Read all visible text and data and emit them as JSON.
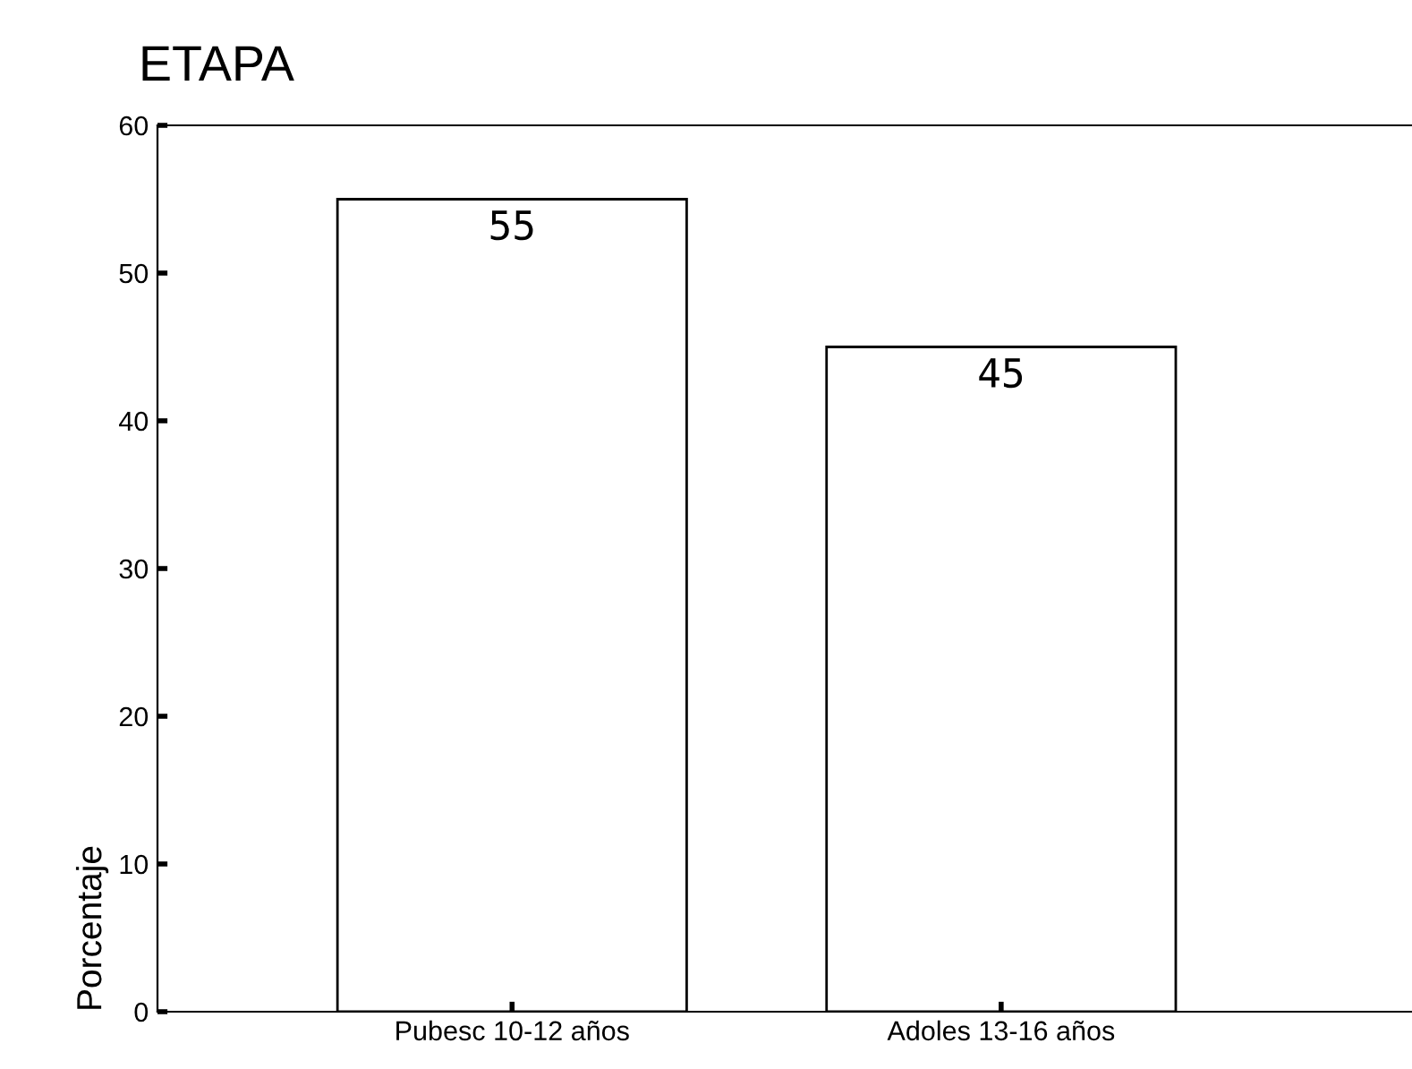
{
  "chart_data": {
    "type": "bar",
    "title": "ETAPA",
    "ylabel": "Porcentaje",
    "categories": [
      "Pubesc 10-12 años",
      "Adoles 13-16 años"
    ],
    "values": [
      55,
      45
    ],
    "color": "#ffffff",
    "ylim": [
      0,
      60
    ],
    "yticks": [
      0,
      10,
      20,
      30,
      40,
      50,
      60
    ],
    "grid": false,
    "legend": false,
    "data_labels": true
  }
}
